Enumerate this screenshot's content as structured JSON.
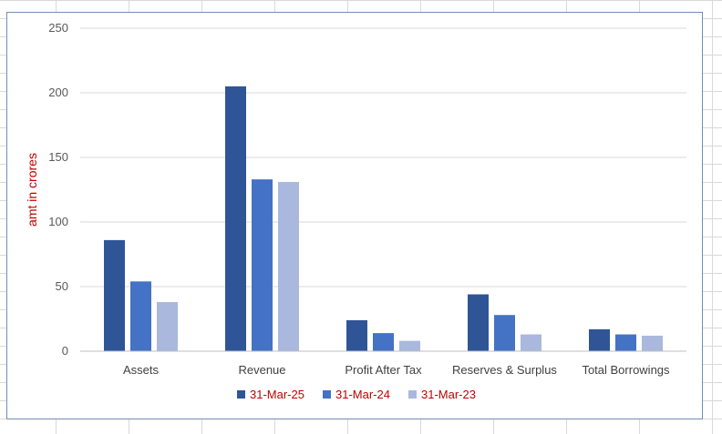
{
  "chart_data": {
    "type": "bar",
    "title": "",
    "xlabel": "",
    "ylabel": "amt in crores",
    "ylim": [
      0,
      250
    ],
    "yticks": [
      "0",
      "50",
      "100",
      "150",
      "200",
      "250"
    ],
    "grid": true,
    "legend_position": "bottom",
    "categories": [
      "Assets",
      "Revenue",
      "Profit After Tax",
      "Reserves & Surplus",
      "Total Borrowings"
    ],
    "series": [
      {
        "name": "31-Mar-25",
        "color": "#2F5597",
        "values": [
          86,
          205,
          24,
          44,
          17
        ]
      },
      {
        "name": "31-Mar-24",
        "color": "#4472C4",
        "values": [
          54,
          133,
          14,
          28,
          13
        ]
      },
      {
        "name": "31-Mar-23",
        "color": "#A9B8DC",
        "values": [
          38,
          131,
          8,
          13,
          12
        ]
      }
    ],
    "ylabel_color": "#C00000",
    "legend_text_color": "#C00000"
  }
}
